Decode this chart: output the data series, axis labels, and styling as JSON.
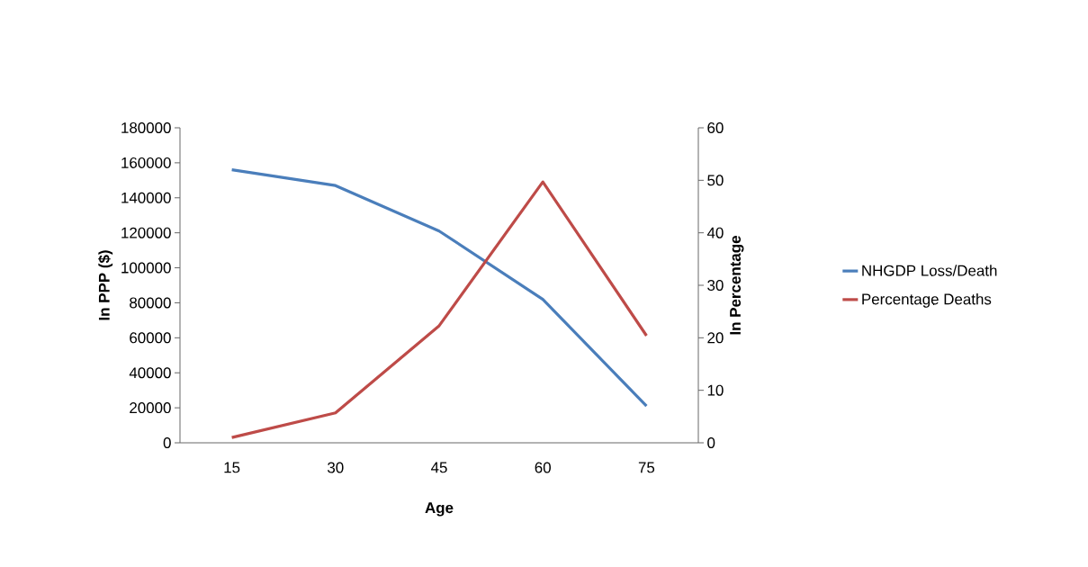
{
  "chart_data": {
    "type": "line",
    "categories": [
      "15",
      "30",
      "45",
      "60",
      "75"
    ],
    "xlabel": "Age",
    "ylabel": "In PPP ($)",
    "y2label": "In Percentage",
    "ylim": [
      0,
      180000
    ],
    "yticks": [
      0,
      20000,
      40000,
      60000,
      80000,
      100000,
      120000,
      140000,
      160000,
      180000
    ],
    "y2lim": [
      0,
      60
    ],
    "y2ticks": [
      0,
      10,
      20,
      30,
      40,
      50,
      60
    ],
    "legend": "right",
    "grid": false,
    "marker": "none",
    "line_style": "solid",
    "series": [
      {
        "name": "NHGDP Loss/Death",
        "color": "#4a7ebb",
        "values": [
          156000,
          147000,
          121000,
          82000,
          21000
        ]
      },
      {
        "name": "Percentage Deaths",
        "color": "#be4b48",
        "values": [
          1,
          5.7,
          22.3,
          49.7,
          20.4
        ],
        "axis": "y2"
      }
    ]
  }
}
